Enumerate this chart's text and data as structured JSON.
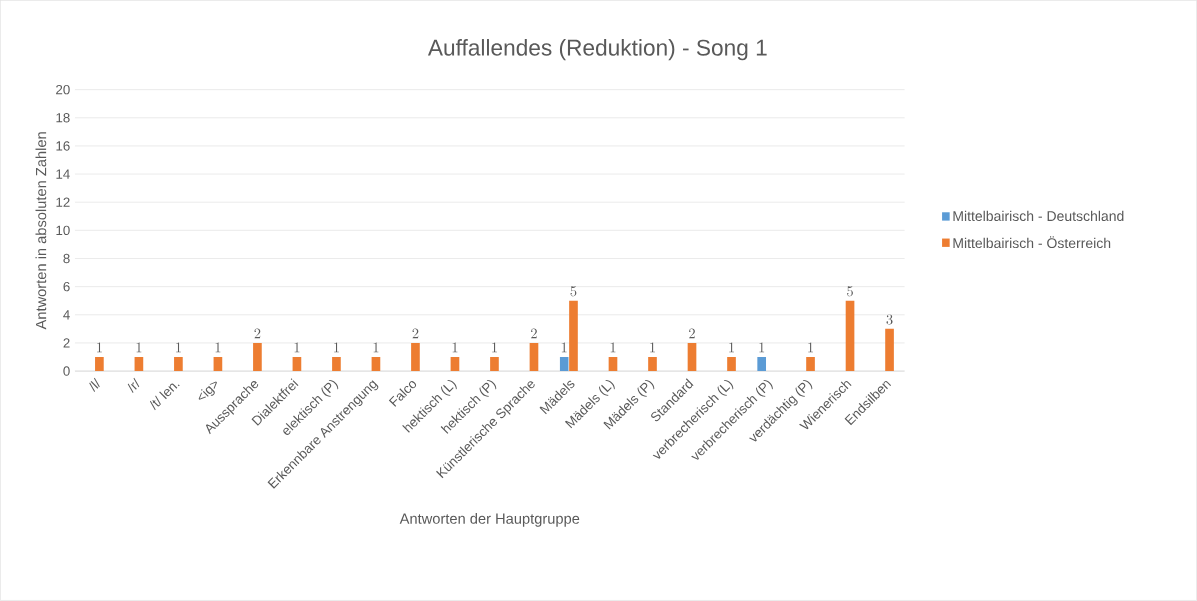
{
  "chart_data": {
    "type": "bar",
    "title": "Auffallendes (Reduktion) - Song 1",
    "xlabel": "Antworten der Hauptgruppe",
    "ylabel": "Antworten in absoluten Zahlen",
    "categories": [
      "/l/",
      "/r/",
      "/t/ len.",
      "<ig>",
      "Aussprache",
      "Dialektfrei",
      "elektisch (P)",
      "Erkennbare Anstrengung",
      "Falco",
      "hektisch (L)",
      "hektisch (P)",
      "Künstlerische Sprache",
      "Mädels",
      "Mädels (L)",
      "Mädels (P)",
      "Standard",
      "verbrecherisch (L)",
      "verbrecherisch (P)",
      "verdächtig (P)",
      "Wienerisch",
      "Endsilben"
    ],
    "series": [
      {
        "name": "Mittelbairisch - Deutschland",
        "color": "#5b9bd5",
        "values": [
          null,
          null,
          null,
          null,
          null,
          null,
          null,
          null,
          null,
          null,
          null,
          null,
          1,
          null,
          null,
          null,
          null,
          1,
          null,
          null,
          null
        ]
      },
      {
        "name": "Mittelbairisch - Österreich",
        "color": "#ed7d31",
        "values": [
          1,
          1,
          1,
          1,
          2,
          1,
          1,
          1,
          2,
          1,
          1,
          2,
          5,
          1,
          1,
          2,
          1,
          null,
          1,
          5,
          3
        ]
      }
    ],
    "ylim": [
      0,
      20
    ],
    "yticks": [
      0,
      2,
      4,
      6,
      8,
      10,
      12,
      14,
      16,
      18,
      20
    ],
    "grid": "y",
    "legend": "right",
    "data_labels": true
  }
}
